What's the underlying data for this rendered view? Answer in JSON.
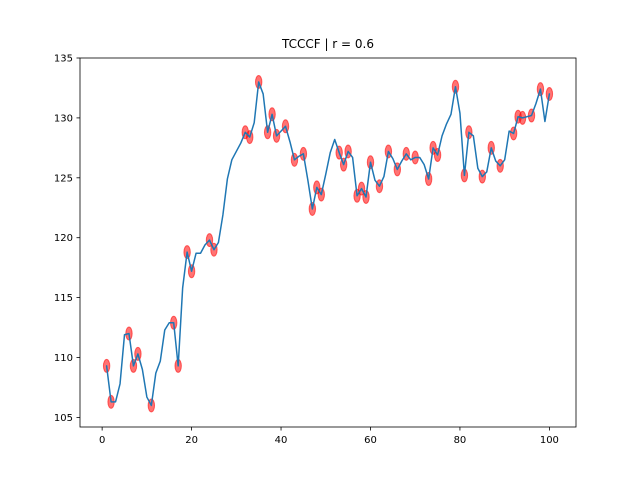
{
  "chart_data": {
    "type": "line",
    "title": "TCCCF | r = 0.6",
    "xlabel": "",
    "ylabel": "",
    "xlim": [
      -4.95,
      105.95
    ],
    "ylim": [
      104.2,
      135.0
    ],
    "xticks": [
      0,
      20,
      40,
      60,
      80,
      100
    ],
    "yticks": [
      105,
      110,
      115,
      120,
      125,
      130,
      135
    ],
    "grid": false,
    "line_color": "#1f77b4",
    "marker_color": "#ff0000",
    "marker_alpha": 0.55,
    "series": [
      {
        "x": [
          1,
          2,
          3,
          4,
          5,
          6,
          7,
          8,
          9,
          10,
          11,
          12,
          13,
          14,
          15,
          16,
          17,
          18,
          19,
          20,
          21,
          22,
          23,
          24,
          25,
          26,
          27,
          28,
          29,
          30,
          31,
          32,
          33,
          34,
          35,
          36,
          37,
          38,
          39,
          40,
          41,
          42,
          43,
          44,
          45,
          46,
          47,
          48,
          49,
          50,
          51,
          52,
          53,
          54,
          55,
          56,
          57,
          58,
          59,
          60,
          61,
          62,
          63,
          64,
          65,
          66,
          67,
          68,
          69,
          70,
          71,
          72,
          73,
          74,
          75,
          76,
          77,
          78,
          79,
          80,
          81,
          82,
          83,
          84,
          85,
          86,
          87,
          88,
          89,
          90,
          91,
          92,
          93,
          94,
          95,
          96,
          97,
          98,
          99,
          100
        ],
        "y": [
          109.3,
          106.3,
          106.3,
          107.8,
          111.9,
          112.0,
          109.3,
          110.3,
          109.0,
          106.7,
          106.0,
          108.7,
          109.7,
          112.3,
          112.9,
          112.9,
          109.3,
          115.8,
          118.8,
          117.2,
          118.7,
          118.7,
          119.4,
          119.8,
          119.0,
          119.6,
          121.9,
          124.9,
          126.5,
          127.2,
          127.9,
          128.8,
          128.4,
          129.6,
          133.0,
          132.0,
          128.8,
          130.3,
          128.5,
          128.9,
          129.3,
          128.0,
          126.5,
          126.8,
          127.0,
          124.8,
          122.4,
          124.2,
          123.6,
          125.3,
          127.1,
          128.2,
          127.1,
          126.1,
          127.2,
          126.7,
          123.5,
          124.1,
          123.4,
          126.3,
          124.8,
          124.3,
          125.1,
          127.2,
          126.6,
          125.7,
          126.4,
          127.0,
          126.5,
          126.7,
          126.7,
          126.1,
          124.9,
          127.5,
          126.9,
          128.5,
          129.5,
          130.3,
          132.6,
          130.4,
          125.2,
          128.8,
          128.5,
          125.8,
          125.1,
          125.5,
          127.5,
          126.4,
          126.0,
          126.5,
          128.9,
          128.7,
          130.1,
          130.0,
          130.1,
          130.2,
          131.2,
          132.4,
          129.7,
          132.0
        ],
        "marked_x": [
          1,
          2,
          6,
          7,
          8,
          11,
          16,
          17,
          19,
          20,
          24,
          25,
          32,
          33,
          35,
          37,
          38,
          39,
          41,
          43,
          45,
          47,
          48,
          49,
          53,
          54,
          55,
          57,
          58,
          59,
          60,
          62,
          64,
          66,
          68,
          70,
          73,
          74,
          75,
          79,
          81,
          82,
          85,
          87,
          89,
          92,
          93,
          94,
          96,
          98,
          100
        ]
      }
    ]
  }
}
